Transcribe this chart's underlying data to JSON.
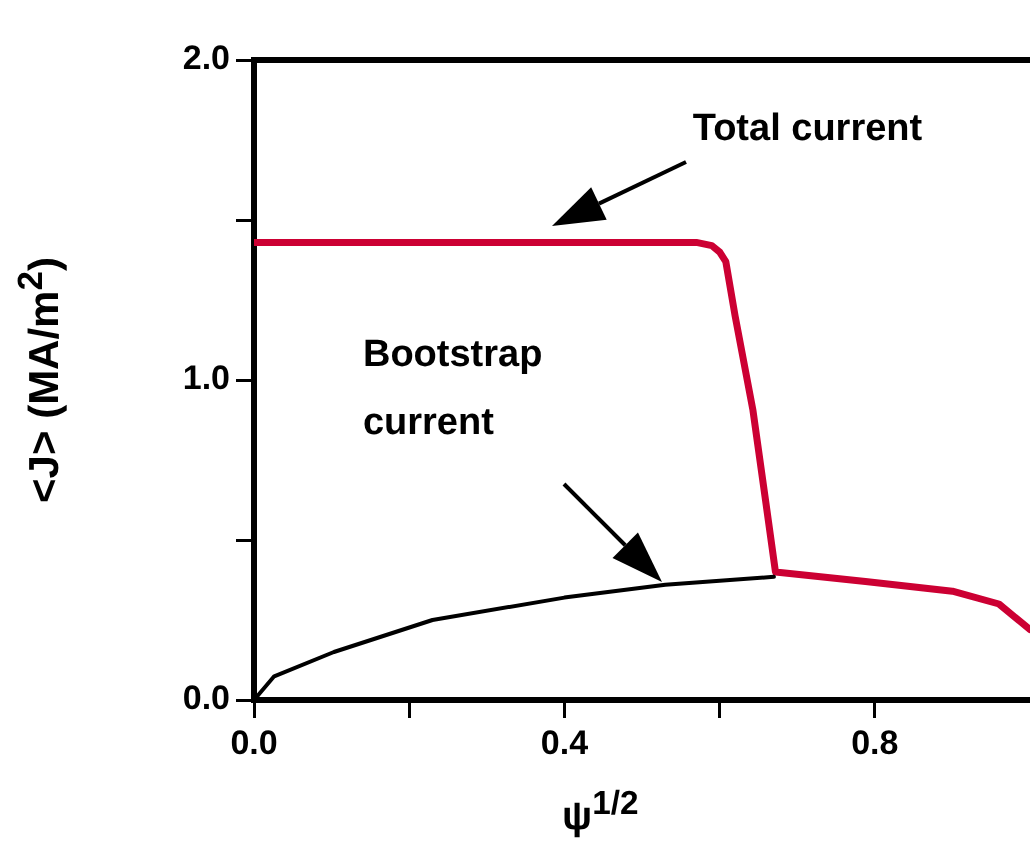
{
  "chart_data": {
    "type": "line",
    "xlabel": "ψ$^{1/2}$",
    "ylabel": "<J> (MA/m$^{2}$)",
    "xlim": [
      0,
      1
    ],
    "ylim": [
      0,
      2
    ],
    "xticks": [
      {
        "value": 0,
        "label": "0.0"
      },
      {
        "value": 0.2,
        "label": null
      },
      0.4,
      {
        "value": 0.6,
        "label": null
      },
      0.8
    ],
    "yticks": [
      {
        "value": 0,
        "label": "0.0"
      },
      {
        "value": 0.5,
        "label": null
      },
      {
        "value": 1,
        "label": "1.0"
      },
      {
        "value": 1.5,
        "label": null
      },
      {
        "value": 2,
        "label": "2.0"
      }
    ],
    "grid": false,
    "marker": "none",
    "line_style": "solid",
    "series": [
      {
        "color": "#cc0033",
        "x": [
          0,
          0.57,
          0.59,
          0.6,
          0.608,
          0.62,
          0.643,
          0.66,
          0.672,
          0.788,
          0.9,
          0.96,
          1.0
        ],
        "values": [
          1.43,
          1.43,
          1.42,
          1.4,
          1.37,
          1.2,
          0.905,
          0.61,
          0.4,
          0.37,
          0.34,
          0.3,
          0.22
        ]
      },
      {
        "color": "#000000",
        "x": [
          0,
          0.026,
          0.103,
          0.23,
          0.4,
          0.53,
          0.67
        ],
        "values": [
          0,
          0.074,
          0.15,
          0.25,
          0.32,
          0.36,
          0.385
        ]
      }
    ],
    "annotations": [
      "Total current",
      "Bootstrap current"
    ]
  }
}
